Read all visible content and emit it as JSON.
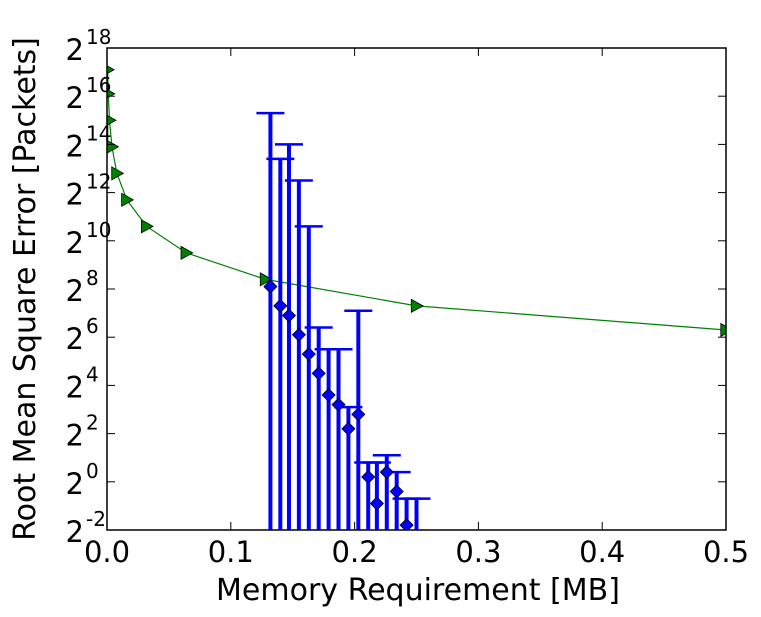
{
  "chart_data": {
    "type": "line",
    "title": "",
    "xlabel": "Memory Requirement [MB]",
    "ylabel": "Root Mean Square Error [Packets]",
    "xlim": [
      0.0,
      0.5
    ],
    "ylim_log2": [
      -2,
      18
    ],
    "y_scale": "log2",
    "x_ticks": [
      0.0,
      0.1,
      0.2,
      0.3,
      0.4,
      0.5
    ],
    "x_tick_labels": [
      "0.0",
      "0.1",
      "0.2",
      "0.3",
      "0.4",
      "0.5"
    ],
    "y_ticks_log2": [
      -2,
      0,
      2,
      4,
      6,
      8,
      10,
      12,
      14,
      16,
      18
    ],
    "y_tick_base": "2",
    "y_tick_exponents": [
      "-2",
      "0",
      "2",
      "4",
      "6",
      "8",
      "10",
      "12",
      "14",
      "16",
      "18"
    ],
    "grid": false,
    "legend": "none",
    "series": [
      {
        "marker": "triangle-right",
        "color": "#008000",
        "x": [
          0.0005,
          0.001,
          0.002,
          0.004,
          0.008,
          0.016,
          0.032,
          0.064,
          0.128,
          0.25,
          0.5
        ],
        "y_log2": [
          17.1,
          16.1,
          15.0,
          13.9,
          12.8,
          11.7,
          10.6,
          9.5,
          8.4,
          7.3,
          6.3
        ]
      },
      {
        "marker": "diamond",
        "color": "#0000ff",
        "errorbars": true,
        "x": [
          0.132,
          0.14,
          0.147,
          0.155,
          0.163,
          0.171,
          0.179,
          0.187,
          0.195,
          0.203,
          0.211,
          0.218,
          0.226,
          0.234,
          0.242,
          0.25
        ],
        "y_log2": [
          8.1,
          7.3,
          6.9,
          6.1,
          5.3,
          4.5,
          3.6,
          3.2,
          2.2,
          2.8,
          0.2,
          -0.9,
          0.4,
          -0.4,
          -1.8,
          -3.0
        ],
        "err_low_log2": [
          -3,
          -3,
          -3,
          -3,
          -3,
          -3,
          -3,
          -3,
          -3,
          -3,
          -3,
          -3,
          -3,
          -3,
          -3,
          -3
        ],
        "err_high_log2": [
          15.3,
          13.4,
          14.0,
          12.5,
          10.6,
          6.4,
          5.5,
          5.5,
          3.1,
          7.1,
          0.8,
          0.8,
          1.1,
          0.4,
          -0.7,
          -0.7
        ]
      }
    ]
  }
}
